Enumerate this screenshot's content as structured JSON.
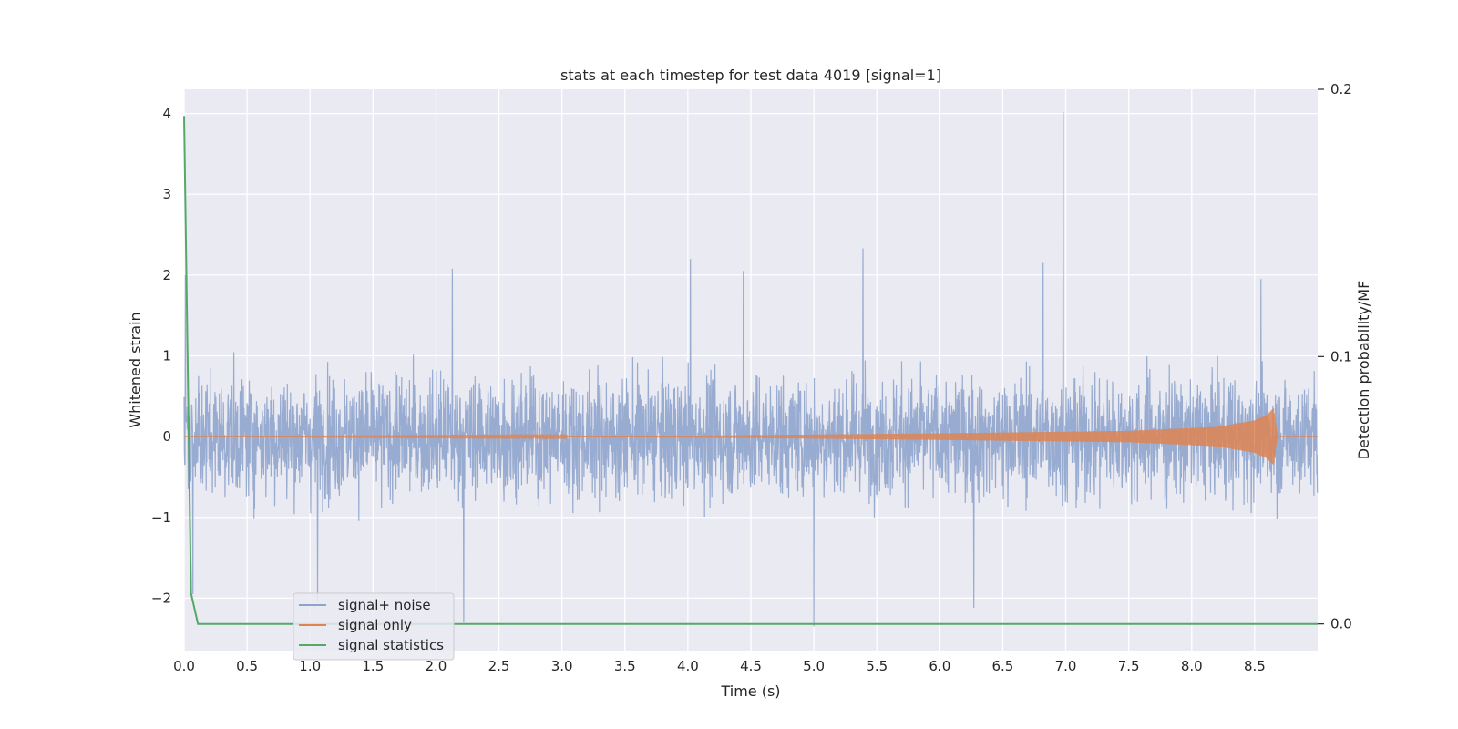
{
  "chart_data": {
    "type": "line",
    "title": "stats at each timestep for test data 4019 [signal=1]",
    "xlabel": "Time (s)",
    "ylabel": "Whitened strain",
    "y2label": "Detection probability/MF",
    "xlim": [
      0.0,
      9.0
    ],
    "ylim": [
      -2.65,
      4.3
    ],
    "y2lim": [
      -0.01,
      0.2
    ],
    "grid": true,
    "legend_position": "lower-left",
    "x_ticks": [
      "0.0",
      "0.5",
      "1.0",
      "1.5",
      "2.0",
      "2.5",
      "3.0",
      "3.5",
      "4.0",
      "4.5",
      "5.0",
      "5.5",
      "6.0",
      "6.5",
      "7.0",
      "7.5",
      "8.0",
      "8.5"
    ],
    "y_ticks": [
      "−2",
      "−1",
      "0",
      "1",
      "2",
      "3",
      "4"
    ],
    "y2_ticks": [
      "0.0",
      "0.1",
      "0.2"
    ],
    "background_color": "#eaeaf2",
    "grid_color": "#ffffff",
    "series": [
      {
        "name": "signal+ noise",
        "color": "#8fa4cc",
        "axis": "left",
        "kind": "noise",
        "sample_rate_hz": 400,
        "typical_range": [
          -1.0,
          1.0
        ],
        "peaks": [
          {
            "x": 0.01,
            "y": 2.0
          },
          {
            "x": 2.13,
            "y": 2.08
          },
          {
            "x": 4.02,
            "y": 2.2
          },
          {
            "x": 4.44,
            "y": 2.05
          },
          {
            "x": 5.39,
            "y": 2.33
          },
          {
            "x": 6.82,
            "y": 2.15
          },
          {
            "x": 6.98,
            "y": 4.02
          },
          {
            "x": 8.55,
            "y": 1.95
          },
          {
            "x": 2.22,
            "y": -2.3
          },
          {
            "x": 5.0,
            "y": -2.35
          },
          {
            "x": 1.06,
            "y": -2.05
          },
          {
            "x": 6.27,
            "y": -2.12
          },
          {
            "x": 0.07,
            "y": -1.95
          }
        ]
      },
      {
        "name": "signal only",
        "color": "#dd8452",
        "axis": "left",
        "kind": "chirp",
        "x": [
          0.0,
          4.0,
          6.0,
          7.5,
          8.2,
          8.5,
          8.6,
          8.65,
          8.68,
          9.0
        ],
        "amplitude": [
          0.0,
          0.01,
          0.04,
          0.07,
          0.12,
          0.2,
          0.27,
          0.35,
          0.0,
          0.0
        ]
      },
      {
        "name": "signal statistics",
        "color": "#55a868",
        "axis": "right",
        "x": [
          0.0,
          0.055,
          0.11,
          9.0
        ],
        "values": [
          0.19,
          0.0115,
          0.0,
          0.0
        ]
      }
    ]
  }
}
